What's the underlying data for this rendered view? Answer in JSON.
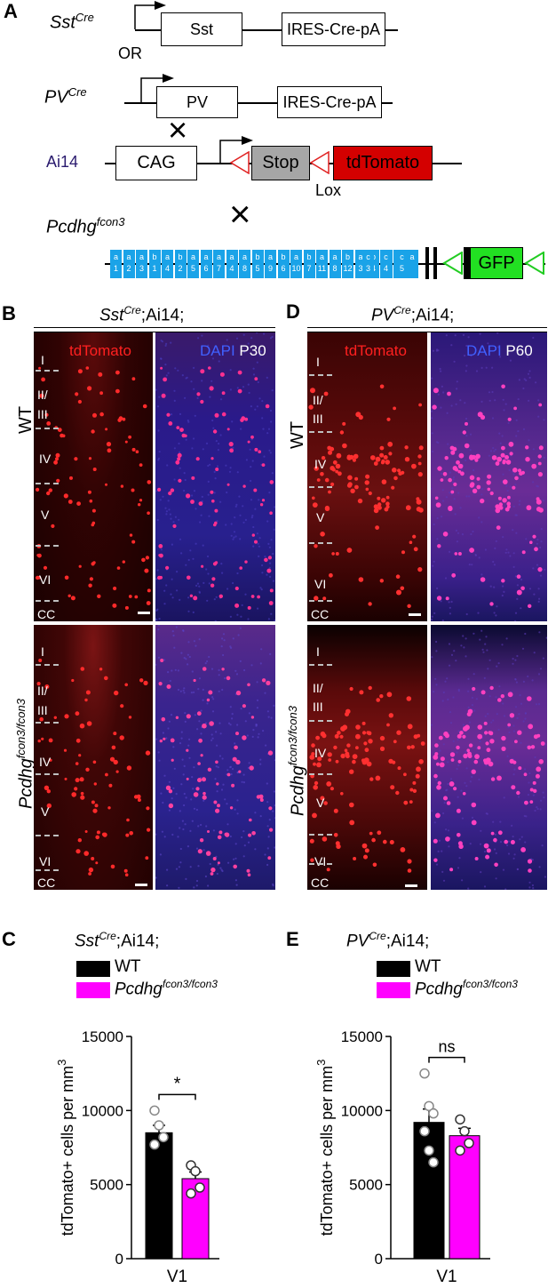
{
  "panel_A": {
    "letter": "A",
    "sst_cre_base": "Sst",
    "sst_cre_sup": "Cre",
    "sst_gene": "Sst",
    "ires_cre": "IRES-Cre-pA",
    "or": "OR",
    "pv_cre_base": "PV",
    "pv_cre_sup": "Cre",
    "pv_gene": "PV",
    "ires_cre_pv": "IRES-Cre-pA",
    "cross": "×",
    "ai14": "Ai14",
    "cag": "CAG",
    "stop": "Stop",
    "tdtomato": "tdTomato",
    "lox": "Lox",
    "fcon3_base": "Pcdhg",
    "fcon3_sup": "fcon3",
    "gfp": "GFP",
    "exons_top": [
      "a",
      "a",
      "a",
      "b",
      "a",
      "b",
      "a",
      "a",
      "a",
      "a",
      "a",
      "b",
      "a",
      "b",
      "a",
      "b",
      "a",
      "a",
      "b",
      "a",
      "b",
      "a",
      "b",
      "a",
      "c",
      "c",
      "c"
    ],
    "exons_bottom": [
      "1",
      "2",
      "3",
      "1",
      "4",
      "2",
      "5",
      "6",
      "7",
      "4",
      "8",
      "5",
      "9",
      "6",
      "10",
      "7",
      "11",
      "8",
      "12",
      "3",
      "4",
      "5"
    ],
    "colors": {
      "exon": "#1aa3e8",
      "stop_fill": "#a6a6a6",
      "tdtomato_fill": "#d40000",
      "gfp_fill": "#22e022",
      "lox_red": "#e02020",
      "lox_green": "#22cc22",
      "ai14_color": "#2a1a6e"
    }
  },
  "panel_B": {
    "letter": "B",
    "title_base": "Sst",
    "title_sup": "Cre",
    "title_rest": ";Ai14;",
    "chan_red": "tdTomato",
    "chan_dapi": "DAPI",
    "chan_age": "P30",
    "row_wt": "WT",
    "row_mut_base": "Pcdhg",
    "row_mut_sup": "fcon3/fcon3",
    "layers_top": [
      "I",
      "II/",
      "III",
      "IV",
      "V",
      "VI",
      "CC"
    ],
    "layers_bottom": [
      "I",
      "II/",
      "III",
      "IV",
      "V",
      "VI",
      "CC"
    ]
  },
  "panel_D": {
    "letter": "D",
    "title_base": "PV",
    "title_sup": "Cre",
    "title_rest": ";Ai14;",
    "chan_red": "tdTomato",
    "chan_dapi": "DAPI",
    "chan_age": "P60",
    "row_wt": "WT",
    "row_mut_base": "Pcdhg",
    "row_mut_sup": "fcon3/fcon3",
    "layers_top": [
      "I",
      "II/",
      "III",
      "IV",
      "V",
      "VI",
      "CC"
    ],
    "layers_bottom": [
      "I",
      "II/",
      "III",
      "IV",
      "V",
      "VI",
      "CC"
    ]
  },
  "panel_C": {
    "letter": "C",
    "title_base": "Sst",
    "title_sup": "Cre",
    "title_rest": ";Ai14;",
    "legend_wt": "WT",
    "legend_mut_base": "Pcdhg",
    "legend_mut_sup": "fcon3/fcon3",
    "sig": "*"
  },
  "panel_E": {
    "letter": "E",
    "title_base": "PV",
    "title_sup": "Cre",
    "title_rest": ";Ai14;",
    "legend_wt": "WT",
    "legend_mut_base": "Pcdhg",
    "legend_mut_sup": "fcon3/fcon3",
    "sig": "ns"
  },
  "chart_data": [
    {
      "type": "bar",
      "panel": "C",
      "title": "SstCre;Ai14;",
      "categories": [
        "V1"
      ],
      "ylabel": "tdTomato+ cells per mm3",
      "ylim": [
        0,
        15000
      ],
      "yticks": [
        0,
        5000,
        10000,
        15000
      ],
      "series": [
        {
          "name": "WT",
          "values": [
            8500
          ],
          "sem": [
            500
          ],
          "points": [
            10000,
            9000,
            8200,
            7700
          ],
          "color": "#000000"
        },
        {
          "name": "Pcdhgfcon3/fcon3",
          "values": [
            5400
          ],
          "sem": [
            450
          ],
          "points": [
            6300,
            5900,
            4800,
            4400
          ],
          "color": "#ff00ff"
        }
      ],
      "significance": "*"
    },
    {
      "type": "bar",
      "panel": "E",
      "title": "PVCre;Ai14;",
      "categories": [
        "V1"
      ],
      "ylabel": "tdTomato+ cells per mm3",
      "ylim": [
        0,
        15000
      ],
      "yticks": [
        0,
        5000,
        10000,
        15000
      ],
      "series": [
        {
          "name": "WT",
          "values": [
            9200
          ],
          "sem": [
            900
          ],
          "points": [
            12500,
            10300,
            9800,
            8600,
            7300,
            6500
          ],
          "color": "#000000"
        },
        {
          "name": "Pcdhgfcon3/fcon3",
          "values": [
            8300
          ],
          "sem": [
            500
          ],
          "points": [
            9400,
            8600,
            7800,
            7300
          ],
          "color": "#ff00ff"
        }
      ],
      "significance": "ns"
    }
  ]
}
